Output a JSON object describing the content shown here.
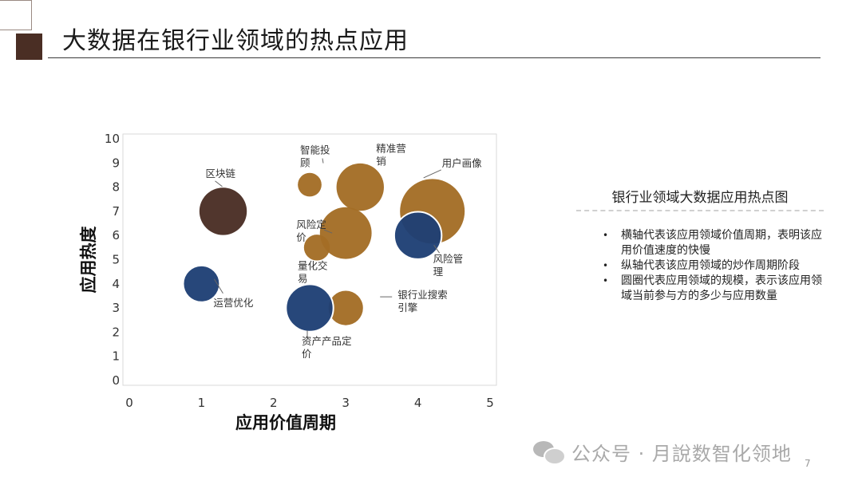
{
  "slide": {
    "title": "大数据在银行业领域的热点应用",
    "page_number": "7"
  },
  "chart_data": {
    "type": "bubble",
    "xlabel": "应用价值周期",
    "ylabel": "应用热度",
    "xlim": [
      0,
      5
    ],
    "ylim": [
      0,
      10
    ],
    "x_ticks": [
      0,
      1,
      2,
      3,
      4,
      5
    ],
    "y_ticks": [
      0,
      1,
      2,
      3,
      4,
      5,
      6,
      7,
      8,
      9,
      10
    ],
    "grid": false,
    "legend": "none",
    "points": [
      {
        "label": "区块链",
        "x": 1.3,
        "y": 7.0,
        "size": 1.1,
        "color": "#4a2e24"
      },
      {
        "label": "运营优化",
        "x": 1.0,
        "y": 4.0,
        "size": 0.85,
        "color": "#1e3f75"
      },
      {
        "label": "智能投顾",
        "x": 2.5,
        "y": 8.1,
        "size": 0.55,
        "color": "#a36d25"
      },
      {
        "label": "精准营销",
        "x": 3.2,
        "y": 8.0,
        "size": 1.1,
        "color": "#a36d25"
      },
      {
        "label": "用户画像",
        "x": 4.2,
        "y": 7.0,
        "size": 1.5,
        "color": "#a36d25"
      },
      {
        "label": "风险定价",
        "x": 3.0,
        "y": 6.1,
        "size": 1.2,
        "color": "#a36d25"
      },
      {
        "label": "量化交易",
        "x": 2.6,
        "y": 5.5,
        "size": 0.6,
        "color": "#a36d25"
      },
      {
        "label": "风险管理",
        "x": 4.0,
        "y": 6.0,
        "size": 1.1,
        "color": "#1e3f75"
      },
      {
        "label": "银行业搜索引擎",
        "x": 3.0,
        "y": 3.0,
        "size": 0.8,
        "color": "#a36d25"
      },
      {
        "label": "资产产品定价",
        "x": 2.5,
        "y": 3.0,
        "size": 1.1,
        "color": "#1e3f75"
      }
    ]
  },
  "side_panel": {
    "title": "银行业领域大数据应用热点图",
    "bullets": [
      "横轴代表该应用领域价值周期，表明该应用价值速度的快慢",
      "纵轴代表该应用领域的炒作周期阶段",
      "圆圈代表应用领域的规模，表示该应用领域当前参与方的多少与应用数量"
    ]
  },
  "watermark": {
    "text": "公众号 · 月說数智化领地"
  }
}
